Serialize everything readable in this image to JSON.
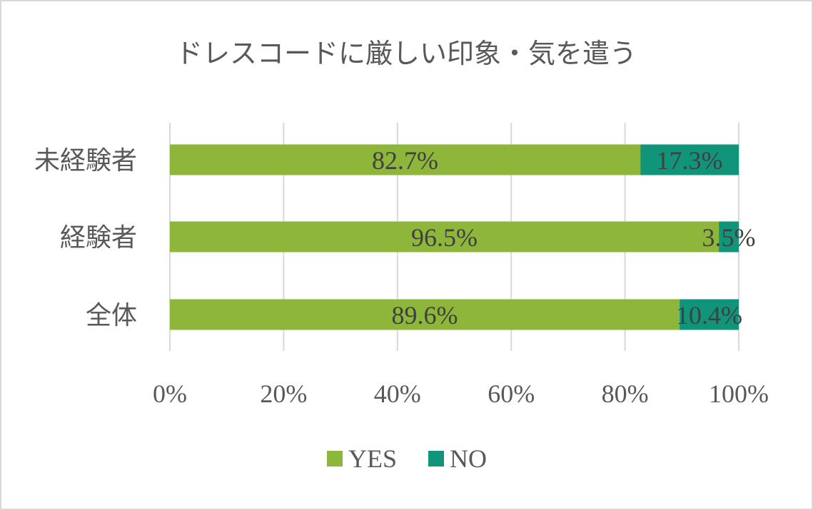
{
  "chart_data": {
    "type": "bar",
    "orientation": "horizontal",
    "stacked": "percent",
    "title": "ドレスコードに厳しい印象・気を遣う",
    "categories": [
      "未経験者",
      "経験者",
      "全体"
    ],
    "series": [
      {
        "name": "YES",
        "color": "#8db63a",
        "values": [
          82.7,
          96.5,
          89.6
        ],
        "labels": [
          "82.7%",
          "96.5%",
          "89.6%"
        ]
      },
      {
        "name": "NO",
        "color": "#11957a",
        "values": [
          17.3,
          3.5,
          10.4
        ],
        "labels": [
          "17.3%",
          "3.5%",
          "10.4%"
        ]
      }
    ],
    "xlim": [
      0,
      100
    ],
    "x_ticks": [
      0,
      20,
      40,
      60,
      80,
      100
    ],
    "x_tick_labels": [
      "0%",
      "20%",
      "40%",
      "60%",
      "80%",
      "100%"
    ],
    "grid": true,
    "legend_position": "bottom"
  }
}
